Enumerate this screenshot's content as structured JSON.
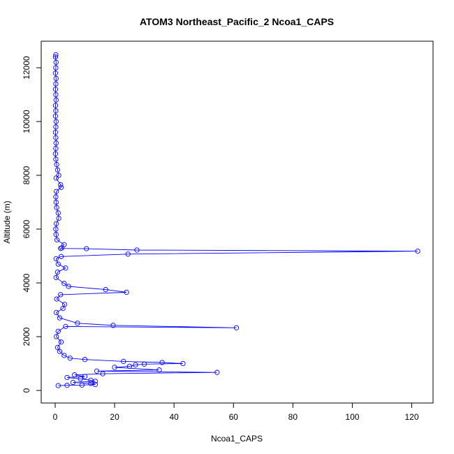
{
  "chart_data": {
    "type": "line",
    "title": "ATOM3 Northeast_Pacific_2 Ncoa1_CAPS",
    "xlabel": "Ncoa1_CAPS",
    "ylabel": "Altitude (m)",
    "xlim": [
      0,
      125
    ],
    "ylim": [
      0,
      12500
    ],
    "xticks": [
      0,
      20,
      40,
      60,
      80,
      100,
      120
    ],
    "yticks": [
      0,
      2000,
      4000,
      6000,
      8000,
      10000,
      12000
    ],
    "grid": false,
    "legend": "none",
    "color": "#0000ff",
    "series": [
      {
        "marker": "open-circle",
        "points": [
          [
            0.2,
            12480
          ],
          [
            0.1,
            12400
          ],
          [
            0.3,
            12200
          ],
          [
            0.2,
            12000
          ],
          [
            0.1,
            11800
          ],
          [
            0.3,
            11600
          ],
          [
            0.2,
            11400
          ],
          [
            0.1,
            11200
          ],
          [
            0.2,
            11000
          ],
          [
            0.3,
            10800
          ],
          [
            0.1,
            10600
          ],
          [
            0.2,
            10400
          ],
          [
            0.1,
            10200
          ],
          [
            0.3,
            10000
          ],
          [
            0.2,
            9800
          ],
          [
            0.1,
            9600
          ],
          [
            0.2,
            9400
          ],
          [
            0.3,
            9200
          ],
          [
            0.2,
            9000
          ],
          [
            0.1,
            8800
          ],
          [
            0.2,
            8600
          ],
          [
            0.5,
            8400
          ],
          [
            0.8,
            8200
          ],
          [
            1.2,
            8000
          ],
          [
            0.3,
            7900
          ],
          [
            1.8,
            7650
          ],
          [
            2.0,
            7550
          ],
          [
            0.4,
            7400
          ],
          [
            0.2,
            7200
          ],
          [
            0.3,
            7000
          ],
          [
            0.5,
            6800
          ],
          [
            1.0,
            6600
          ],
          [
            1.2,
            6400
          ],
          [
            0.4,
            6200
          ],
          [
            0.2,
            6000
          ],
          [
            0.3,
            5800
          ],
          [
            0.6,
            5600
          ],
          [
            3.0,
            5420
          ],
          [
            2.2,
            5300
          ],
          [
            1.8,
            5280
          ],
          [
            10.5,
            5270
          ],
          [
            27.5,
            5220
          ],
          [
            122.0,
            5180
          ],
          [
            24.5,
            5070
          ],
          [
            2.0,
            4980
          ],
          [
            0.3,
            4900
          ],
          [
            1.0,
            4700
          ],
          [
            3.5,
            4550
          ],
          [
            0.8,
            4400
          ],
          [
            0.3,
            4200
          ],
          [
            3.0,
            3980
          ],
          [
            4.5,
            3870
          ],
          [
            17.0,
            3750
          ],
          [
            24.0,
            3650
          ],
          [
            1.8,
            3560
          ],
          [
            0.5,
            3400
          ],
          [
            3.2,
            3200
          ],
          [
            2.6,
            3050
          ],
          [
            0.4,
            2900
          ],
          [
            1.5,
            2700
          ],
          [
            7.5,
            2500
          ],
          [
            19.5,
            2420
          ],
          [
            61.0,
            2330
          ],
          [
            3.5,
            2380
          ],
          [
            1.0,
            2200
          ],
          [
            0.4,
            2000
          ],
          [
            2.0,
            1800
          ],
          [
            0.8,
            1600
          ],
          [
            1.5,
            1450
          ],
          [
            3.0,
            1300
          ],
          [
            5.0,
            1200
          ],
          [
            10.0,
            1150
          ],
          [
            23.0,
            1080
          ],
          [
            36.0,
            1040
          ],
          [
            43.0,
            1000
          ],
          [
            30.0,
            980
          ],
          [
            27.0,
            950
          ],
          [
            25.0,
            900
          ],
          [
            20.0,
            860
          ],
          [
            35.0,
            760
          ],
          [
            14.0,
            720
          ],
          [
            54.5,
            670
          ],
          [
            16.0,
            620
          ],
          [
            6.5,
            580
          ],
          [
            10.0,
            520
          ],
          [
            4.0,
            480
          ],
          [
            8.5,
            430
          ],
          [
            12.0,
            380
          ],
          [
            13.5,
            340
          ],
          [
            6.0,
            300
          ],
          [
            12.0,
            260
          ],
          [
            13.5,
            220
          ],
          [
            9.0,
            200
          ],
          [
            4.0,
            190
          ],
          [
            1.0,
            180
          ]
        ]
      }
    ]
  }
}
